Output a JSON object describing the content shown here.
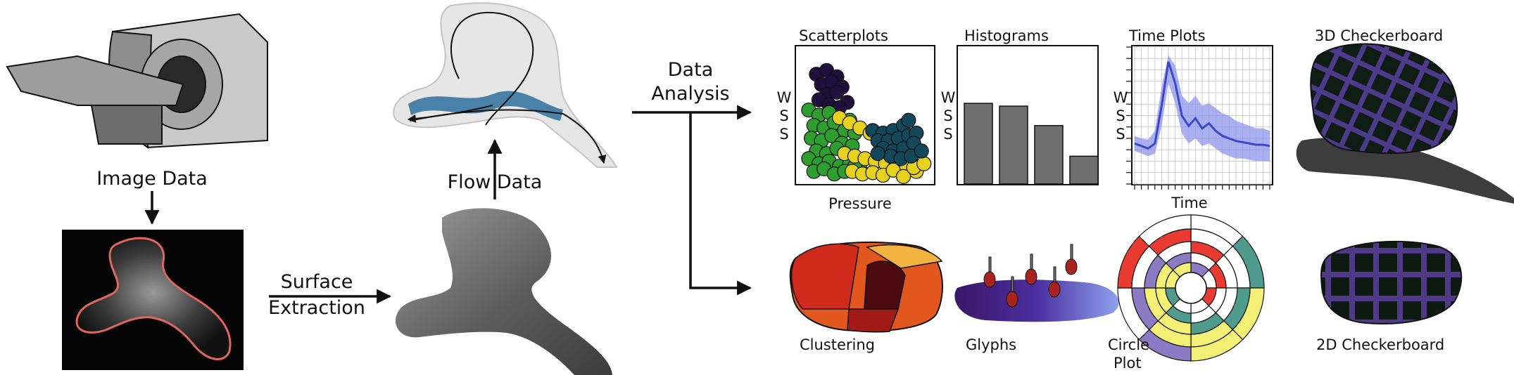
{
  "pipeline": {
    "image_data": "Image Data",
    "flow_data": "Flow Data",
    "surface_extraction": [
      "Surface",
      "Extraction"
    ],
    "data_analysis": [
      "Data",
      "Analysis"
    ]
  },
  "panels": {
    "scatterplots": "Scatterplots",
    "histograms": "Histograms",
    "time_plots": "Time Plots",
    "checker3d": "3D Checkerboard",
    "clustering": "Clustering",
    "glyphs": "Glyphs",
    "circle_plot": [
      "Circle",
      "Plot"
    ],
    "checker2d": "2D Checkerboard"
  },
  "axes": {
    "wss": [
      "W",
      "S",
      "S"
    ],
    "pressure": "Pressure",
    "time": "Time"
  },
  "chart_data": [
    {
      "type": "scatter",
      "title": "Scatterplots",
      "xlabel": "Pressure",
      "ylabel": "WSS",
      "series": [
        {
          "color": "#1f0f3d",
          "x": [
            0.12,
            0.2,
            0.28,
            0.16,
            0.24,
            0.32,
            0.2,
            0.28,
            0.36,
            0.14,
            0.22,
            0.3
          ],
          "y": [
            0.82,
            0.85,
            0.8,
            0.74,
            0.76,
            0.72,
            0.66,
            0.68,
            0.6,
            0.62,
            0.58,
            0.56
          ]
        },
        {
          "color": "#2e9e2e",
          "x": [
            0.06,
            0.14,
            0.22,
            0.3,
            0.38,
            0.1,
            0.18,
            0.26,
            0.34,
            0.42,
            0.08,
            0.16,
            0.24,
            0.32,
            0.4,
            0.12,
            0.2,
            0.28,
            0.36,
            0.06,
            0.14,
            0.22,
            0.3,
            0.38,
            0.46,
            0.1,
            0.18,
            0.26,
            0.34,
            0.42
          ],
          "y": [
            0.54,
            0.5,
            0.52,
            0.48,
            0.46,
            0.42,
            0.4,
            0.44,
            0.38,
            0.36,
            0.32,
            0.3,
            0.34,
            0.28,
            0.26,
            0.22,
            0.2,
            0.24,
            0.18,
            0.16,
            0.12,
            0.14,
            0.1,
            0.12,
            0.08,
            0.06,
            0.08,
            0.04,
            0.06,
            0.1
          ]
        },
        {
          "color": "#e6d11e",
          "x": [
            0.3,
            0.38,
            0.46,
            0.54,
            0.62,
            0.7,
            0.78,
            0.86,
            0.94,
            0.34,
            0.42,
            0.5,
            0.58,
            0.66,
            0.74,
            0.82,
            0.9,
            0.4,
            0.48,
            0.56,
            0.64,
            0.72,
            0.8,
            0.88,
            0.96
          ],
          "y": [
            0.48,
            0.44,
            0.4,
            0.36,
            0.32,
            0.3,
            0.26,
            0.24,
            0.22,
            0.2,
            0.18,
            0.16,
            0.14,
            0.12,
            0.1,
            0.08,
            0.06,
            0.06,
            0.04,
            0.05,
            0.03,
            0.07,
            0.02,
            0.09,
            0.12
          ]
        },
        {
          "color": "#12485a",
          "x": [
            0.56,
            0.64,
            0.72,
            0.8,
            0.6,
            0.68,
            0.76,
            0.84,
            0.9,
            0.64,
            0.72,
            0.8,
            0.88,
            0.7,
            0.78,
            0.86,
            0.94,
            0.6,
            0.84
          ],
          "y": [
            0.38,
            0.36,
            0.38,
            0.42,
            0.3,
            0.3,
            0.32,
            0.34,
            0.36,
            0.24,
            0.22,
            0.24,
            0.28,
            0.18,
            0.16,
            0.18,
            0.22,
            0.2,
            0.46
          ]
        }
      ]
    },
    {
      "type": "bar",
      "title": "Histograms",
      "ylabel": "WSS",
      "values": [
        0.58,
        0.56,
        0.42,
        0.2
      ],
      "ylim": [
        0,
        1
      ]
    },
    {
      "type": "line",
      "title": "Time Plots",
      "xlabel": "Time",
      "ylabel": "WSS",
      "x": [
        0,
        1,
        2,
        3,
        4,
        5,
        6,
        7,
        8,
        9,
        10,
        11,
        12,
        13,
        14,
        15,
        16,
        17,
        18,
        19,
        20
      ],
      "series": [
        {
          "role": "mean",
          "values": [
            0.3,
            0.28,
            0.26,
            0.3,
            0.6,
            0.95,
            0.78,
            0.52,
            0.44,
            0.5,
            0.42,
            0.46,
            0.4,
            0.36,
            0.34,
            0.32,
            0.31,
            0.3,
            0.29,
            0.29,
            0.28
          ]
        },
        {
          "role": "band_upper",
          "values": [
            0.36,
            0.34,
            0.33,
            0.4,
            0.75,
            1.0,
            0.92,
            0.68,
            0.62,
            0.68,
            0.6,
            0.62,
            0.58,
            0.54,
            0.52,
            0.48,
            0.46,
            0.44,
            0.42,
            0.42,
            0.4
          ]
        },
        {
          "role": "band_lower",
          "values": [
            0.24,
            0.22,
            0.2,
            0.22,
            0.44,
            0.78,
            0.62,
            0.38,
            0.3,
            0.34,
            0.28,
            0.3,
            0.26,
            0.22,
            0.2,
            0.18,
            0.18,
            0.17,
            0.16,
            0.16,
            0.16
          ]
        }
      ],
      "ylim": [
        0,
        1.05
      ]
    }
  ]
}
